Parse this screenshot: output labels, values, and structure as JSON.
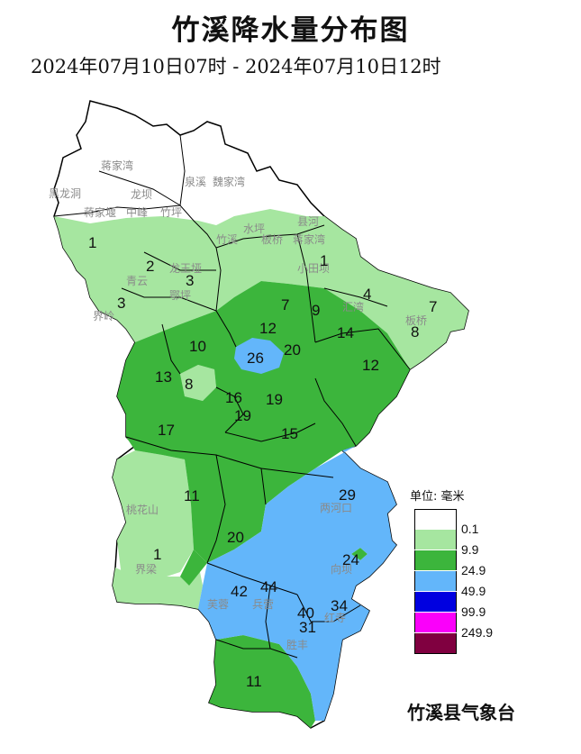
{
  "title": "竹溪降水量分布图",
  "subtitle": "2024年07月10日07时 - 2024年07月10日12时",
  "legend": {
    "unit_label": "单位: 毫米",
    "bins": [
      {
        "color": "#ffffff",
        "label": "0.1"
      },
      {
        "color": "#a6e6a0",
        "label": "9.9"
      },
      {
        "color": "#3cb53c",
        "label": "24.9"
      },
      {
        "color": "#63b6fa",
        "label": "49.9"
      },
      {
        "color": "#0000e0",
        "label": "99.9"
      },
      {
        "color": "#fa00fa",
        "label": "249.9"
      },
      {
        "color": "#800040",
        "label": ""
      }
    ]
  },
  "agency": "竹溪县气象台",
  "values": [
    "1",
    "2",
    "3",
    "3",
    "1",
    "7",
    "9",
    "4",
    "7",
    "8",
    "12",
    "20",
    "14",
    "12",
    "26",
    "10",
    "13",
    "8",
    "16",
    "19",
    "19",
    "17",
    "15",
    "11",
    "29",
    "1",
    "20",
    "24",
    "42",
    "44",
    "40",
    "34",
    "31",
    "11"
  ],
  "places": [
    "黑龙洞",
    "龙坝",
    "蒋家堰",
    "中峰",
    "竹坪",
    "蒋家湾",
    "泉溪",
    "魏家湾",
    "水坪",
    "县河",
    "竹溪",
    "板桥",
    "蒋家湾",
    "小田坝",
    "龙王垭",
    "青云",
    "鄂坪",
    "界岭",
    "汇湾",
    "板桥",
    "桃花山",
    "界梁",
    "两河口",
    "向坝",
    "芙蓉",
    "兵营",
    "胜丰",
    "红寺"
  ]
}
